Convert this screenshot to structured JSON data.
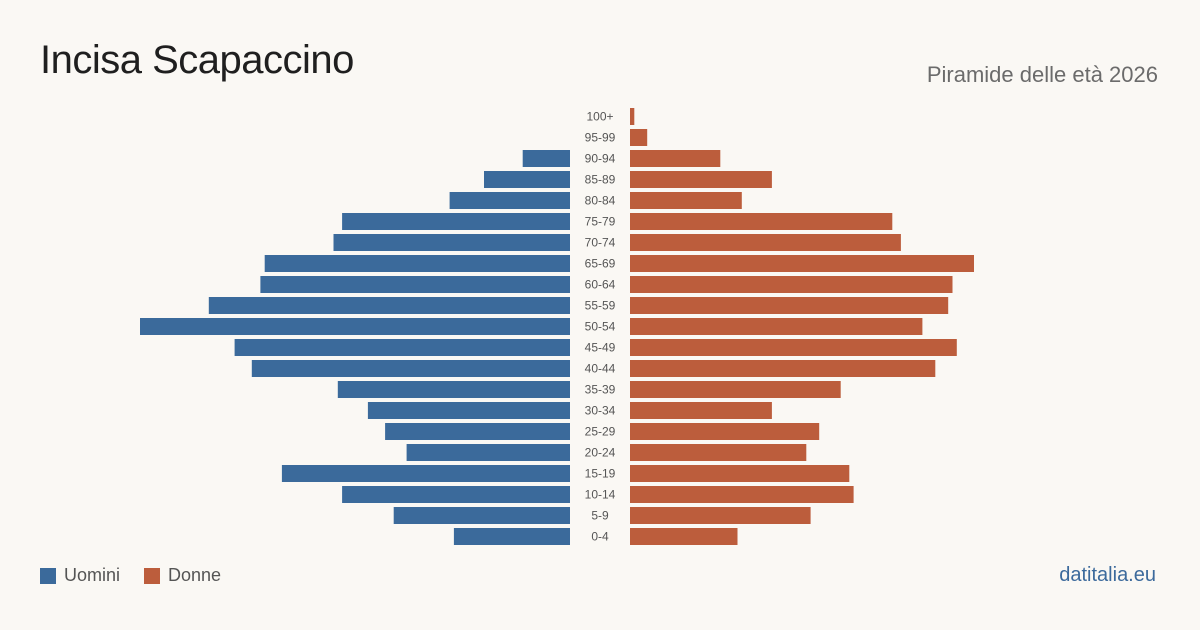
{
  "header": {
    "title": "Incisa Scapaccino",
    "subtitle": "Piramide delle età 2026"
  },
  "legend": {
    "men_label": "Uomini",
    "women_label": "Donne"
  },
  "source": "datitalia.eu",
  "colors": {
    "men": "#3b6a9b",
    "women": "#bc5d3c",
    "background": "#faf8f4"
  },
  "chart_data": {
    "type": "bar",
    "orientation": "horizontal-pyramid",
    "categories": [
      "100+",
      "95-99",
      "90-94",
      "85-89",
      "80-84",
      "75-79",
      "70-74",
      "65-69",
      "60-64",
      "55-59",
      "50-54",
      "45-49",
      "40-44",
      "35-39",
      "30-34",
      "25-29",
      "20-24",
      "15-19",
      "10-14",
      "5-9",
      "0-4"
    ],
    "series": [
      {
        "name": "Uomini",
        "values": [
          0,
          0,
          11,
          20,
          28,
          53,
          55,
          71,
          72,
          84,
          100,
          78,
          74,
          54,
          47,
          43,
          38,
          67,
          53,
          41,
          27
        ]
      },
      {
        "name": "Donne",
        "values": [
          1,
          4,
          21,
          33,
          26,
          61,
          63,
          80,
          75,
          74,
          68,
          76,
          71,
          49,
          33,
          44,
          41,
          51,
          52,
          42,
          25
        ]
      }
    ],
    "xlim": [
      0,
      100
    ],
    "grid": false,
    "legend_position": "bottom-left"
  }
}
